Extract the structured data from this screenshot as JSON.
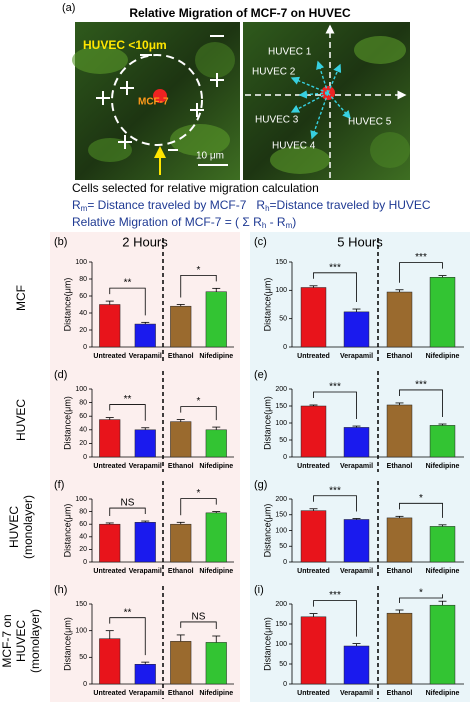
{
  "panel_a": {
    "label": "(a)",
    "title": "Relative Migration  of  MCF-7 on HUVEC",
    "huvec_radius": "HUVEC <10μm",
    "mcf7": "MCF-7",
    "scale_bar": "10 μm",
    "huvec_labels": [
      "HUVEC 1",
      "HUVEC 2",
      "HUVEC 3",
      "HUVEC 4",
      "HUVEC 5"
    ],
    "caption": "Cells selected for relative migration calculation",
    "rm": {
      "symbol": "R",
      "subscript": "m",
      "text": "= Distance traveled by  MCF-7"
    },
    "rh": {
      "symbol": "R",
      "subscript": "h",
      "text": "=Distance traveled by HUVEC"
    },
    "formula": [
      "Relative Migration  of  MCF-7 = ( Σ R",
      "h",
      " - R",
      "m",
      ")"
    ]
  },
  "column_titles": [
    "2 Hours",
    "5 Hours"
  ],
  "row_labels": [
    [
      "MCF"
    ],
    [
      "HUVEC"
    ],
    [
      "HUVEC",
      "(monolayer)"
    ],
    [
      "MCF-7 on",
      "HUVEC",
      "(monolayer)"
    ]
  ],
  "chart_data": [
    {
      "type": "bar",
      "panel": "(b)",
      "ylabel": "Distance(μm)",
      "background": "#fcefee",
      "categories": [
        "Untreated",
        "Verapamil",
        "Ethanol",
        "Nifedipine"
      ],
      "colors": [
        "#e8141b",
        "#1a1aee",
        "#9a6a2e",
        "#33c433"
      ],
      "values": [
        50,
        27,
        48,
        65
      ],
      "errors": [
        4,
        2,
        2,
        4
      ],
      "significance": [
        "**",
        "*"
      ],
      "ylim": [
        0,
        100
      ],
      "yticks": [
        0,
        20,
        40,
        60,
        80,
        100
      ]
    },
    {
      "type": "bar",
      "panel": "(c)",
      "ylabel": "Distance(μm)",
      "background": "#eaf5f9",
      "categories": [
        "Untreated",
        "Verapamil",
        "Ethanol",
        "Nifedipine"
      ],
      "colors": [
        "#e8141b",
        "#1a1aee",
        "#9a6a2e",
        "#33c433"
      ],
      "values": [
        105,
        62,
        97,
        123
      ],
      "errors": [
        3,
        5,
        4,
        3
      ],
      "significance": [
        "***",
        "***"
      ],
      "ylim": [
        0,
        150
      ],
      "yticks": [
        0,
        50,
        100,
        150
      ]
    },
    {
      "type": "bar",
      "panel": "(d)",
      "ylabel": "Distance(μm)",
      "background": "#fcefee",
      "categories": [
        "Untreated",
        "Verapamil",
        "Ethanol",
        "Nifedipine"
      ],
      "colors": [
        "#e8141b",
        "#1a1aee",
        "#9a6a2e",
        "#33c433"
      ],
      "values": [
        55,
        40,
        52,
        40
      ],
      "errors": [
        3,
        3,
        3,
        4
      ],
      "significance": [
        "**",
        "*"
      ],
      "ylim": [
        0,
        100
      ],
      "yticks": [
        0,
        20,
        40,
        60,
        80,
        100
      ]
    },
    {
      "type": "bar",
      "panel": "(e)",
      "ylabel": "Distance(μm)",
      "background": "#eaf5f9",
      "categories": [
        "Untreated",
        "Verapamil",
        "Ethanol",
        "Nifedipine"
      ],
      "colors": [
        "#e8141b",
        "#1a1aee",
        "#9a6a2e",
        "#33c433"
      ],
      "values": [
        150,
        87,
        153,
        93
      ],
      "errors": [
        3,
        4,
        6,
        4
      ],
      "significance": [
        "***",
        "***"
      ],
      "ylim": [
        0,
        200
      ],
      "yticks": [
        0,
        50,
        100,
        150,
        200
      ]
    },
    {
      "type": "bar",
      "panel": "(f)",
      "ylabel": "Distance(μm)",
      "background": "#fcefee",
      "categories": [
        "Untreated",
        "Verapamil",
        "Ethanol",
        "Nifedipine"
      ],
      "colors": [
        "#e8141b",
        "#1a1aee",
        "#9a6a2e",
        "#33c433"
      ],
      "values": [
        60,
        63,
        60,
        78
      ],
      "errors": [
        2,
        2,
        3,
        2
      ],
      "significance": [
        "NS",
        "*"
      ],
      "ylim": [
        0,
        100
      ],
      "yticks": [
        0,
        20,
        40,
        60,
        80,
        100
      ]
    },
    {
      "type": "bar",
      "panel": "(g)",
      "ylabel": "Distance(μm)",
      "background": "#eaf5f9",
      "categories": [
        "Untreated",
        "Verapamil",
        "Ethanol",
        "Nifedipine"
      ],
      "colors": [
        "#e8141b",
        "#1a1aee",
        "#9a6a2e",
        "#33c433"
      ],
      "values": [
        163,
        135,
        140,
        113
      ],
      "errors": [
        6,
        3,
        5,
        5
      ],
      "significance": [
        "***",
        "*"
      ],
      "ylim": [
        0,
        200
      ],
      "yticks": [
        0,
        50,
        100,
        150,
        200
      ]
    },
    {
      "type": "bar",
      "panel": "(h)",
      "ylabel": "Distance(μm)",
      "background": "#fcefee",
      "categories": [
        "Untreated",
        "Verapamil",
        "Ethanol",
        "Nifedipine"
      ],
      "colors": [
        "#e8141b",
        "#1a1aee",
        "#9a6a2e",
        "#33c433"
      ],
      "values": [
        85,
        37,
        80,
        78
      ],
      "errors": [
        15,
        4,
        12,
        12
      ],
      "significance": [
        "**",
        "NS"
      ],
      "ylim": [
        0,
        150
      ],
      "yticks": [
        0,
        50,
        100,
        150
      ]
    },
    {
      "type": "bar",
      "panel": "(i)",
      "ylabel": "Distance(μm)",
      "background": "#eaf5f9",
      "categories": [
        "Untreated",
        "Verapamil",
        "Ethanol",
        "Nifedipine"
      ],
      "colors": [
        "#e8141b",
        "#1a1aee",
        "#9a6a2e",
        "#33c433"
      ],
      "values": [
        168,
        95,
        177,
        197
      ],
      "errors": [
        8,
        6,
        8,
        10
      ],
      "significance": [
        "***",
        "*"
      ],
      "ylim": [
        0,
        200
      ],
      "yticks": [
        0,
        50,
        100,
        150,
        200
      ]
    }
  ]
}
